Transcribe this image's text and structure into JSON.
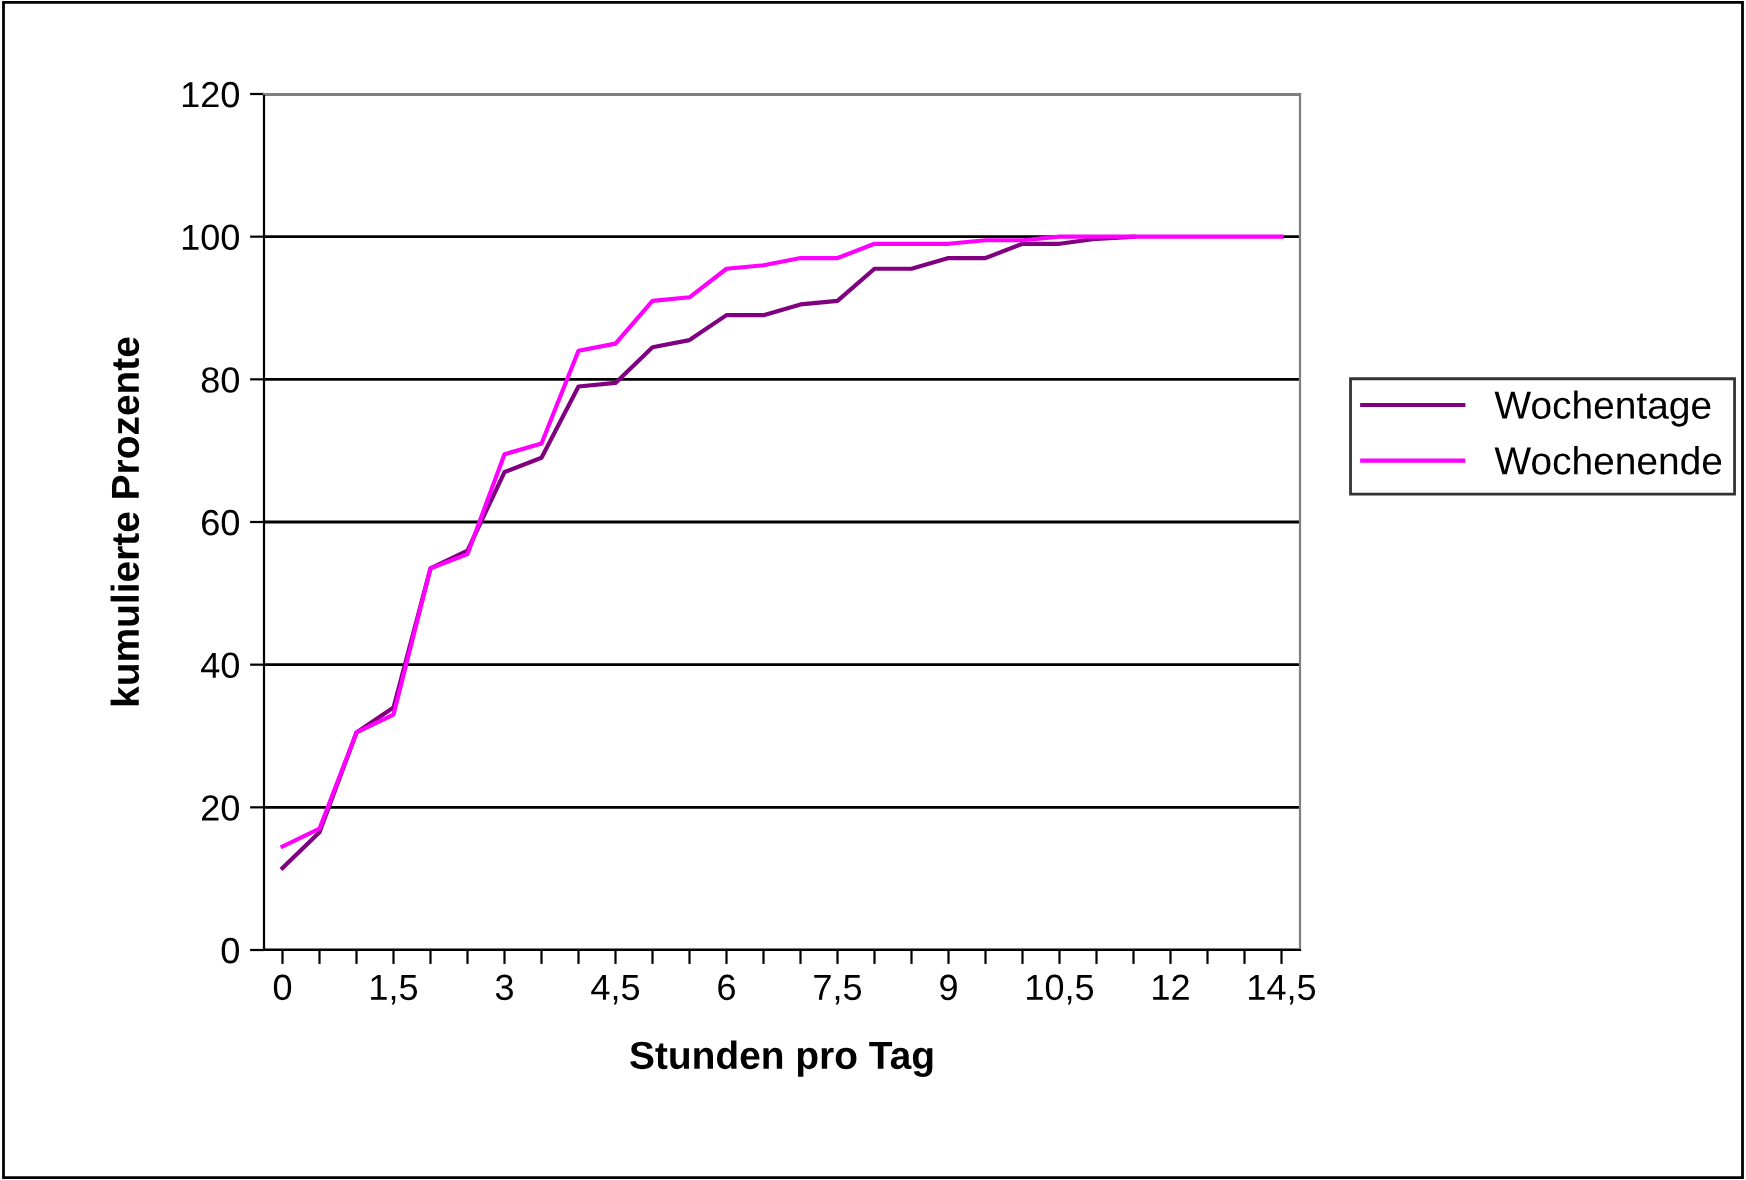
{
  "chart_data": {
    "type": "line",
    "xlabel": "Stunden pro Tag",
    "ylabel": "kumulierte Prozente",
    "categories": [
      "0",
      null,
      null,
      "1,5",
      null,
      null,
      "3",
      null,
      null,
      "4,5",
      null,
      null,
      "6",
      null,
      null,
      "7,5",
      null,
      null,
      "9",
      null,
      null,
      "10,5",
      null,
      null,
      "12",
      null,
      null,
      "14,5"
    ],
    "series": [
      {
        "name": "Wochentage",
        "color": "#800080",
        "values": [
          11.5,
          16.5,
          30.5,
          34,
          53.5,
          56,
          67,
          69,
          79,
          79.5,
          84.5,
          85.5,
          89,
          89,
          90.5,
          91,
          95.5,
          95.5,
          97,
          97,
          99,
          99,
          99.7,
          100,
          null,
          null,
          null,
          null
        ]
      },
      {
        "name": "Wochenende",
        "color": "#ff00ff",
        "values": [
          14.5,
          17,
          30.5,
          33,
          53.5,
          55.5,
          69.5,
          71,
          84,
          85,
          91,
          91.5,
          95.5,
          96,
          97,
          97,
          99,
          99,
          99,
          99.5,
          99.5,
          100,
          100,
          100,
          100,
          100,
          100,
          100
        ]
      }
    ],
    "ylim": [
      0,
      120
    ],
    "yticks": [
      0,
      20,
      40,
      60,
      80,
      100,
      120
    ],
    "grid": "y",
    "legend": "right"
  }
}
